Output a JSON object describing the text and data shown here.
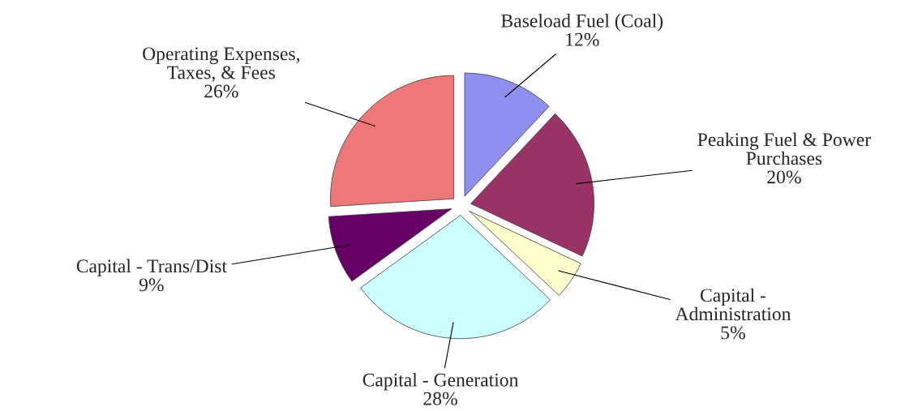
{
  "chart_data": {
    "type": "pie",
    "categories": [
      "Baseload Fuel (Coal)",
      "Peaking Fuel & Power\nPurchases",
      "Capital -\nAdministration",
      "Capital - Generation",
      "Capital - Trans/Dist",
      "Operating Expenses,\nTaxes, & Fees"
    ],
    "values": [
      12,
      20,
      5,
      28,
      9,
      26
    ],
    "value_labels": [
      "12%",
      "20%",
      "5%",
      "28%",
      "9%",
      "26%"
    ],
    "colors": [
      "#8f8fef",
      "#993366",
      "#ffffcc",
      "#ccffff",
      "#660066",
      "#ee7777"
    ]
  }
}
